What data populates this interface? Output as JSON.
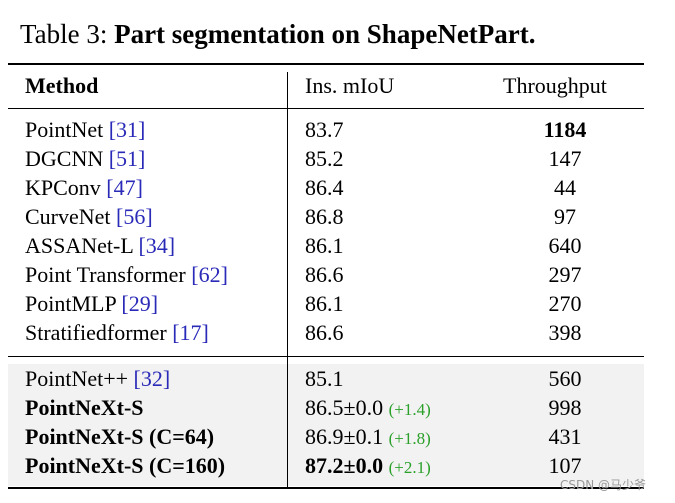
{
  "caption": {
    "label": "Table 3:",
    "title": "Part segmentation on ShapeNetPart."
  },
  "table": {
    "header": [
      "Method",
      "Ins. mIoU",
      "Throughput"
    ],
    "groups": [
      {
        "rows": [
          {
            "method": "PointNet",
            "ref": "[31]",
            "miou": "83.7",
            "throughput": "1184"
          },
          {
            "method": "DGCNN",
            "ref": "[51]",
            "miou": "85.2",
            "throughput": "147"
          },
          {
            "method": "KPConv",
            "ref": "[47]",
            "miou": "86.4",
            "throughput": "44"
          },
          {
            "method": "CurveNet",
            "ref": "[56]",
            "miou": "86.8",
            "throughput": "97"
          },
          {
            "method": "ASSANet-L",
            "ref": "[34]",
            "miou": "86.1",
            "throughput": "640"
          },
          {
            "method": "Point Transformer",
            "ref": "[62]",
            "miou": "86.6",
            "throughput": "297"
          },
          {
            "method": "PointMLP",
            "ref": "[29]",
            "miou": "86.1",
            "throughput": "270"
          },
          {
            "method": "Stratifiedformer",
            "ref": "[17]",
            "miou": "86.6",
            "throughput": "398"
          }
        ]
      },
      {
        "rows": [
          {
            "method": "PointNet++",
            "ref": "[32]",
            "miou": "85.1",
            "throughput": "560"
          },
          {
            "method": "PointNeXt-S",
            "miou": "86.5±0.0",
            "gain": "(+1.4)",
            "throughput": "998"
          },
          {
            "method": "PointNeXt-S (C=64)",
            "miou": "86.9±0.1",
            "gain": "(+1.8)",
            "throughput": "431"
          },
          {
            "method": "PointNeXt-S (C=160)",
            "miou": "87.2±0.0",
            "gain": "(+2.1)",
            "throughput": "107"
          }
        ]
      }
    ]
  },
  "watermark": "CSDN @马少爷"
}
